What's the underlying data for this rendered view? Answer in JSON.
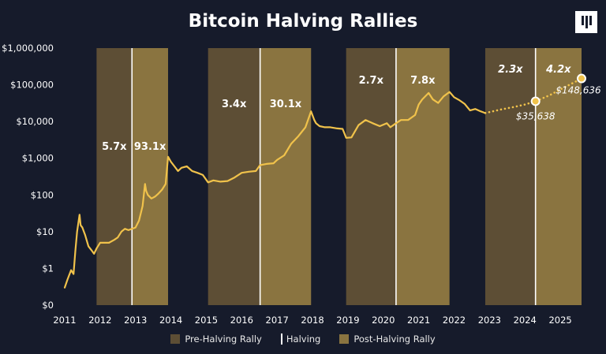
{
  "title": "Bitcoin Halving Rallies",
  "logo_icon": "pantera-logo-icon",
  "colors": {
    "background": "#161b2b",
    "pre": "#5d4e35",
    "post": "#8a7440",
    "price": "#f0c24b",
    "halving": "#ffffff",
    "text": "#ffffff"
  },
  "legend": {
    "pre": "Pre-Halving Rally",
    "halving": "Halving",
    "post": "Post-Halving Rally"
  },
  "chart_data": {
    "type": "line",
    "title": "Bitcoin Halving Rallies",
    "y_scale": "log",
    "ylim": [
      0.1,
      1000000
    ],
    "xlim": [
      2011.0,
      2025.6
    ],
    "x_ticks": [
      2011,
      2012,
      2013,
      2014,
      2015,
      2016,
      2017,
      2018,
      2019,
      2020,
      2021,
      2022,
      2023,
      2024,
      2025
    ],
    "x_tick_labels": [
      "2011",
      "2012",
      "2013",
      "2014",
      "2015",
      "2016",
      "2017",
      "2018",
      "2019",
      "2020",
      "2021",
      "2022",
      "2023",
      "2024",
      "2025"
    ],
    "y_ticks": [
      0.1,
      1,
      10,
      100,
      1000,
      10000,
      100000,
      1000000
    ],
    "y_tick_labels": [
      "$0",
      "$1",
      "$10",
      "$100",
      "$1,000",
      "$10,000",
      "$100,000",
      "$1,000,000"
    ],
    "grid": false,
    "legend_position": "bottom",
    "bands": [
      {
        "kind": "pre",
        "start": 2011.9,
        "end": 2012.9,
        "label": "5.7x"
      },
      {
        "kind": "post",
        "start": 2012.9,
        "end": 2013.92,
        "label": "93.1x"
      },
      {
        "kind": "pre",
        "start": 2015.05,
        "end": 2016.52,
        "label": "3.4x"
      },
      {
        "kind": "post",
        "start": 2016.52,
        "end": 2017.96,
        "label": "30.1x"
      },
      {
        "kind": "pre",
        "start": 2018.95,
        "end": 2020.36,
        "label": "2.7x"
      },
      {
        "kind": "post",
        "start": 2020.36,
        "end": 2021.87,
        "label": "7.8x"
      },
      {
        "kind": "pre",
        "start": 2022.88,
        "end": 2024.3,
        "label": "2.3x"
      },
      {
        "kind": "post",
        "start": 2024.3,
        "end": 2025.6,
        "label": "4.2x"
      }
    ],
    "halvings": [
      2012.9,
      2016.52,
      2020.36,
      2024.3
    ],
    "series": [
      {
        "values_x": [
          2011.0,
          2011.08,
          2011.18,
          2011.25,
          2011.3,
          2011.35,
          2011.42,
          2011.45,
          2011.5,
          2011.58,
          2011.67,
          2011.75,
          2011.83,
          2011.9,
          2012.0,
          2012.1,
          2012.25,
          2012.4,
          2012.5,
          2012.6,
          2012.7,
          2012.8,
          2012.9,
          2013.0,
          2013.1,
          2013.2,
          2013.27,
          2013.3,
          2013.35,
          2013.45,
          2013.55,
          2013.65,
          2013.75,
          2013.85,
          2013.92,
          2014.0,
          2014.1,
          2014.2,
          2014.3,
          2014.45,
          2014.6,
          2014.75,
          2014.9,
          2015.05,
          2015.2,
          2015.4,
          2015.6,
          2015.8,
          2016.0,
          2016.2,
          2016.4,
          2016.52,
          2016.7,
          2016.9,
          2017.0,
          2017.2,
          2017.4,
          2017.6,
          2017.8,
          2017.96,
          2018.05,
          2018.1,
          2018.2,
          2018.35,
          2018.5,
          2018.7,
          2018.85,
          2018.95,
          2019.1,
          2019.3,
          2019.5,
          2019.7,
          2019.9,
          2020.1,
          2020.2,
          2020.36,
          2020.5,
          2020.7,
          2020.9,
          2021.0,
          2021.1,
          2021.28,
          2021.4,
          2021.55,
          2021.7,
          2021.87,
          2022.0,
          2022.15,
          2022.3,
          2022.45,
          2022.6,
          2022.75,
          2022.88
        ],
        "values_y": [
          0.3,
          0.5,
          0.9,
          0.7,
          3,
          10,
          29,
          15,
          13,
          8,
          4,
          3.2,
          2.5,
          3.5,
          5,
          5,
          5,
          6,
          7,
          10,
          12,
          11,
          12,
          13,
          20,
          50,
          200,
          130,
          100,
          80,
          90,
          110,
          140,
          200,
          1100,
          800,
          600,
          450,
          550,
          600,
          450,
          400,
          350,
          220,
          250,
          230,
          240,
          300,
          400,
          430,
          450,
          650,
          700,
          730,
          900,
          1200,
          2500,
          4000,
          7000,
          19000,
          11000,
          9000,
          7500,
          7000,
          7000,
          6500,
          6300,
          3600,
          3700,
          8000,
          11000,
          9000,
          7500,
          9000,
          7000,
          9000,
          11000,
          11000,
          15000,
          29000,
          40000,
          60000,
          40000,
          32000,
          48000,
          64000,
          46000,
          38000,
          30000,
          20000,
          22000,
          19000,
          17000
        ]
      },
      {
        "projection": true,
        "values_x": [
          2022.88,
          2023.3,
          2023.7,
          2024.0,
          2024.3,
          2024.7,
          2025.0,
          2025.3,
          2025.6
        ],
        "values_y": [
          17000,
          21000,
          25000,
          29000,
          35638,
          52000,
          75000,
          105000,
          148636
        ]
      }
    ],
    "annotations": [
      {
        "x": 2024.3,
        "y": 35638,
        "label": "$35,638"
      },
      {
        "x": 2025.6,
        "y": 148636,
        "label": "$148,636"
      }
    ]
  }
}
